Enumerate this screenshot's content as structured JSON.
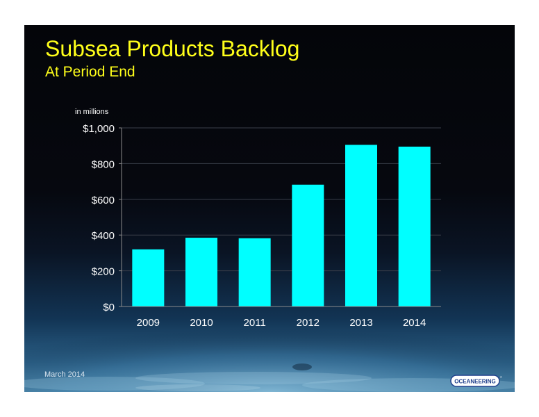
{
  "slide": {
    "title": "Subsea Products Backlog",
    "subtitle": "At Period End",
    "date": "March 2014",
    "logo_text": "OCEANEERING",
    "colors": {
      "title": "#ffff1a",
      "bar": "#00ffff",
      "axis_text": "#ffffff",
      "background": "#05070d"
    }
  },
  "chart_data": {
    "type": "bar",
    "unit_label": "in millions",
    "categories": [
      "2009",
      "2010",
      "2011",
      "2012",
      "2013",
      "2014"
    ],
    "values": [
      320,
      385,
      382,
      682,
      905,
      895
    ],
    "ylim": [
      0,
      1000
    ],
    "yticks": [
      0,
      200,
      400,
      600,
      800,
      1000
    ],
    "ytick_labels": [
      "$0",
      "$200",
      "$400",
      "$600",
      "$800",
      "$1,000"
    ],
    "grid": true,
    "legend": "none"
  }
}
